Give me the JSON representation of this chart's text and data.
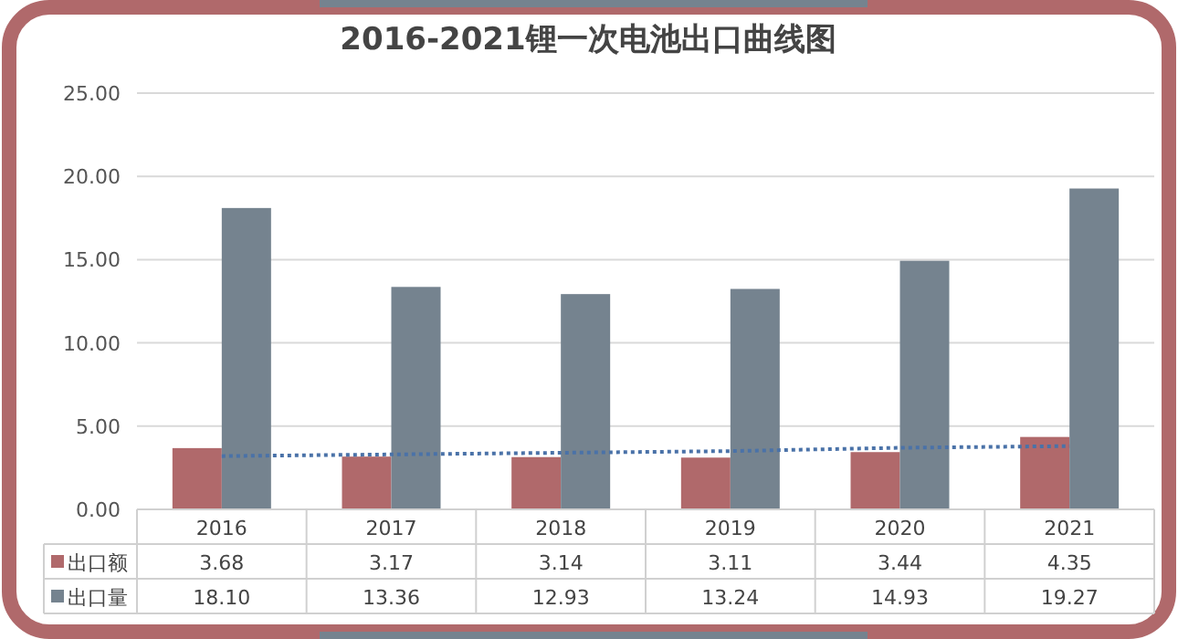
{
  "chart_data": {
    "type": "bar",
    "title": "2016-2021锂一次电池出口曲线图",
    "categories": [
      "2016",
      "2017",
      "2018",
      "2019",
      "2020",
      "2021"
    ],
    "series": [
      {
        "name": "出口额",
        "color": "#b0696b",
        "values": [
          3.68,
          3.17,
          3.14,
          3.11,
          3.44,
          4.35
        ],
        "value_labels": [
          "3.68",
          "3.17",
          "3.14",
          "3.11",
          "3.44",
          "4.35"
        ]
      },
      {
        "name": "出口量",
        "color": "#75838f",
        "values": [
          18.1,
          13.36,
          12.93,
          13.24,
          14.93,
          19.27
        ],
        "value_labels": [
          "18.10",
          "13.36",
          "12.93",
          "13.24",
          "14.93",
          "19.27"
        ]
      },
      {
        "type": "line",
        "color": "#4a72a8",
        "line_style": "dotted",
        "values": [
          3.2,
          3.3,
          3.4,
          3.5,
          3.7,
          3.8
        ]
      }
    ],
    "ylim": [
      0,
      25
    ],
    "yticks": [
      {
        "value": 0,
        "label": "0.00"
      },
      {
        "value": 5,
        "label": "5.00"
      },
      {
        "value": 10,
        "label": "10.00"
      },
      {
        "value": 15,
        "label": "15.00"
      },
      {
        "value": 20,
        "label": "20.00"
      },
      {
        "value": 25,
        "label": "25.00"
      }
    ],
    "grid": "y",
    "legend": "bottom"
  }
}
